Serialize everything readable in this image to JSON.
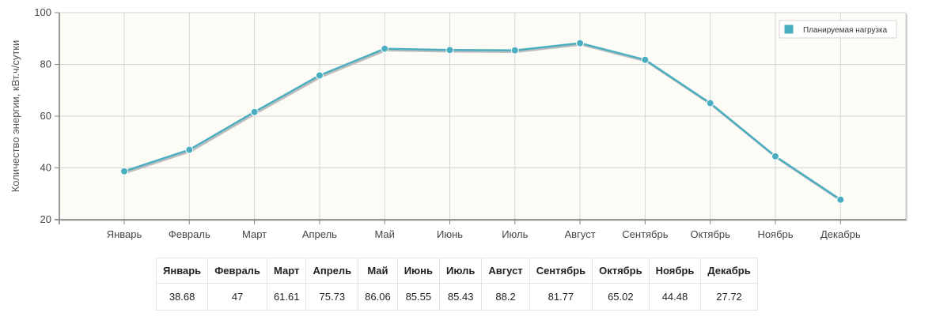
{
  "chart_data": {
    "type": "line",
    "categories": [
      "Январь",
      "Февраль",
      "Март",
      "Апрель",
      "Май",
      "Июнь",
      "Июль",
      "Август",
      "Сентябрь",
      "Октябрь",
      "Ноябрь",
      "Декабрь"
    ],
    "series": [
      {
        "name": "Планируемая нагрузка",
        "values": [
          38.68,
          47,
          61.61,
          75.73,
          86.06,
          85.55,
          85.43,
          88.2,
          81.77,
          65.02,
          44.48,
          27.72
        ],
        "color": "#4aaec0"
      }
    ],
    "ylabel": "Количество энергии, кВт.ч/сутки",
    "ylim": [
      20,
      100
    ],
    "yticks": [
      20,
      40,
      60,
      80,
      100
    ],
    "grid": true,
    "legend": "top-right",
    "plot_background": "#fcfbf6"
  },
  "table": {
    "headers": [
      "Январь",
      "Февраль",
      "Март",
      "Апрель",
      "Май",
      "Июнь",
      "Июль",
      "Август",
      "Сентябрь",
      "Октябрь",
      "Ноябрь",
      "Декабрь"
    ],
    "values": [
      "38.68",
      "47",
      "61.61",
      "75.73",
      "86.06",
      "85.55",
      "85.43",
      "88.2",
      "81.77",
      "65.02",
      "44.48",
      "27.72"
    ]
  }
}
